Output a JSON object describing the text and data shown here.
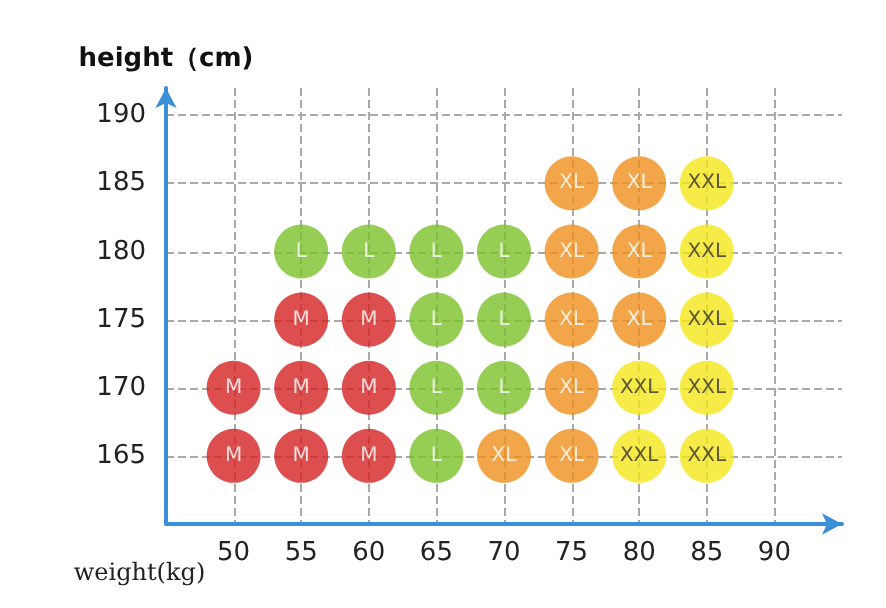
{
  "chart_data": {
    "type": "scatter",
    "xlabel": "weight(kg)",
    "ylabel": "height（cm)",
    "xlim": [
      45,
      95
    ],
    "xticks": [
      50,
      55,
      60,
      65,
      70,
      75,
      80,
      85,
      90
    ],
    "ylim": [
      160,
      192
    ],
    "yticks": [
      165,
      170,
      175,
      180,
      185,
      190
    ],
    "grid": true,
    "marker": "circle",
    "legend": false,
    "series": [
      {
        "name": "M",
        "color": "#d42222",
        "x": [
          55,
          60,
          50,
          55,
          60,
          50,
          55,
          60
        ],
        "values": [
          175,
          175,
          170,
          170,
          170,
          165,
          165,
          165
        ]
      },
      {
        "name": "L",
        "color": "#7cc22a",
        "x": [
          55,
          60,
          65,
          70,
          65,
          70,
          65,
          70,
          65
        ],
        "values": [
          180,
          180,
          180,
          180,
          175,
          175,
          170,
          170,
          165
        ]
      },
      {
        "name": "XL",
        "color": "#f0901c",
        "x": [
          75,
          80,
          75,
          80,
          75,
          80,
          75,
          70,
          75
        ],
        "values": [
          185,
          185,
          180,
          180,
          175,
          175,
          170,
          165,
          165
        ]
      },
      {
        "name": "XXL",
        "color": "#f5e61a",
        "x": [
          85,
          85,
          85,
          80,
          85,
          80,
          85
        ],
        "values": [
          185,
          180,
          175,
          170,
          170,
          165,
          165
        ]
      }
    ]
  }
}
